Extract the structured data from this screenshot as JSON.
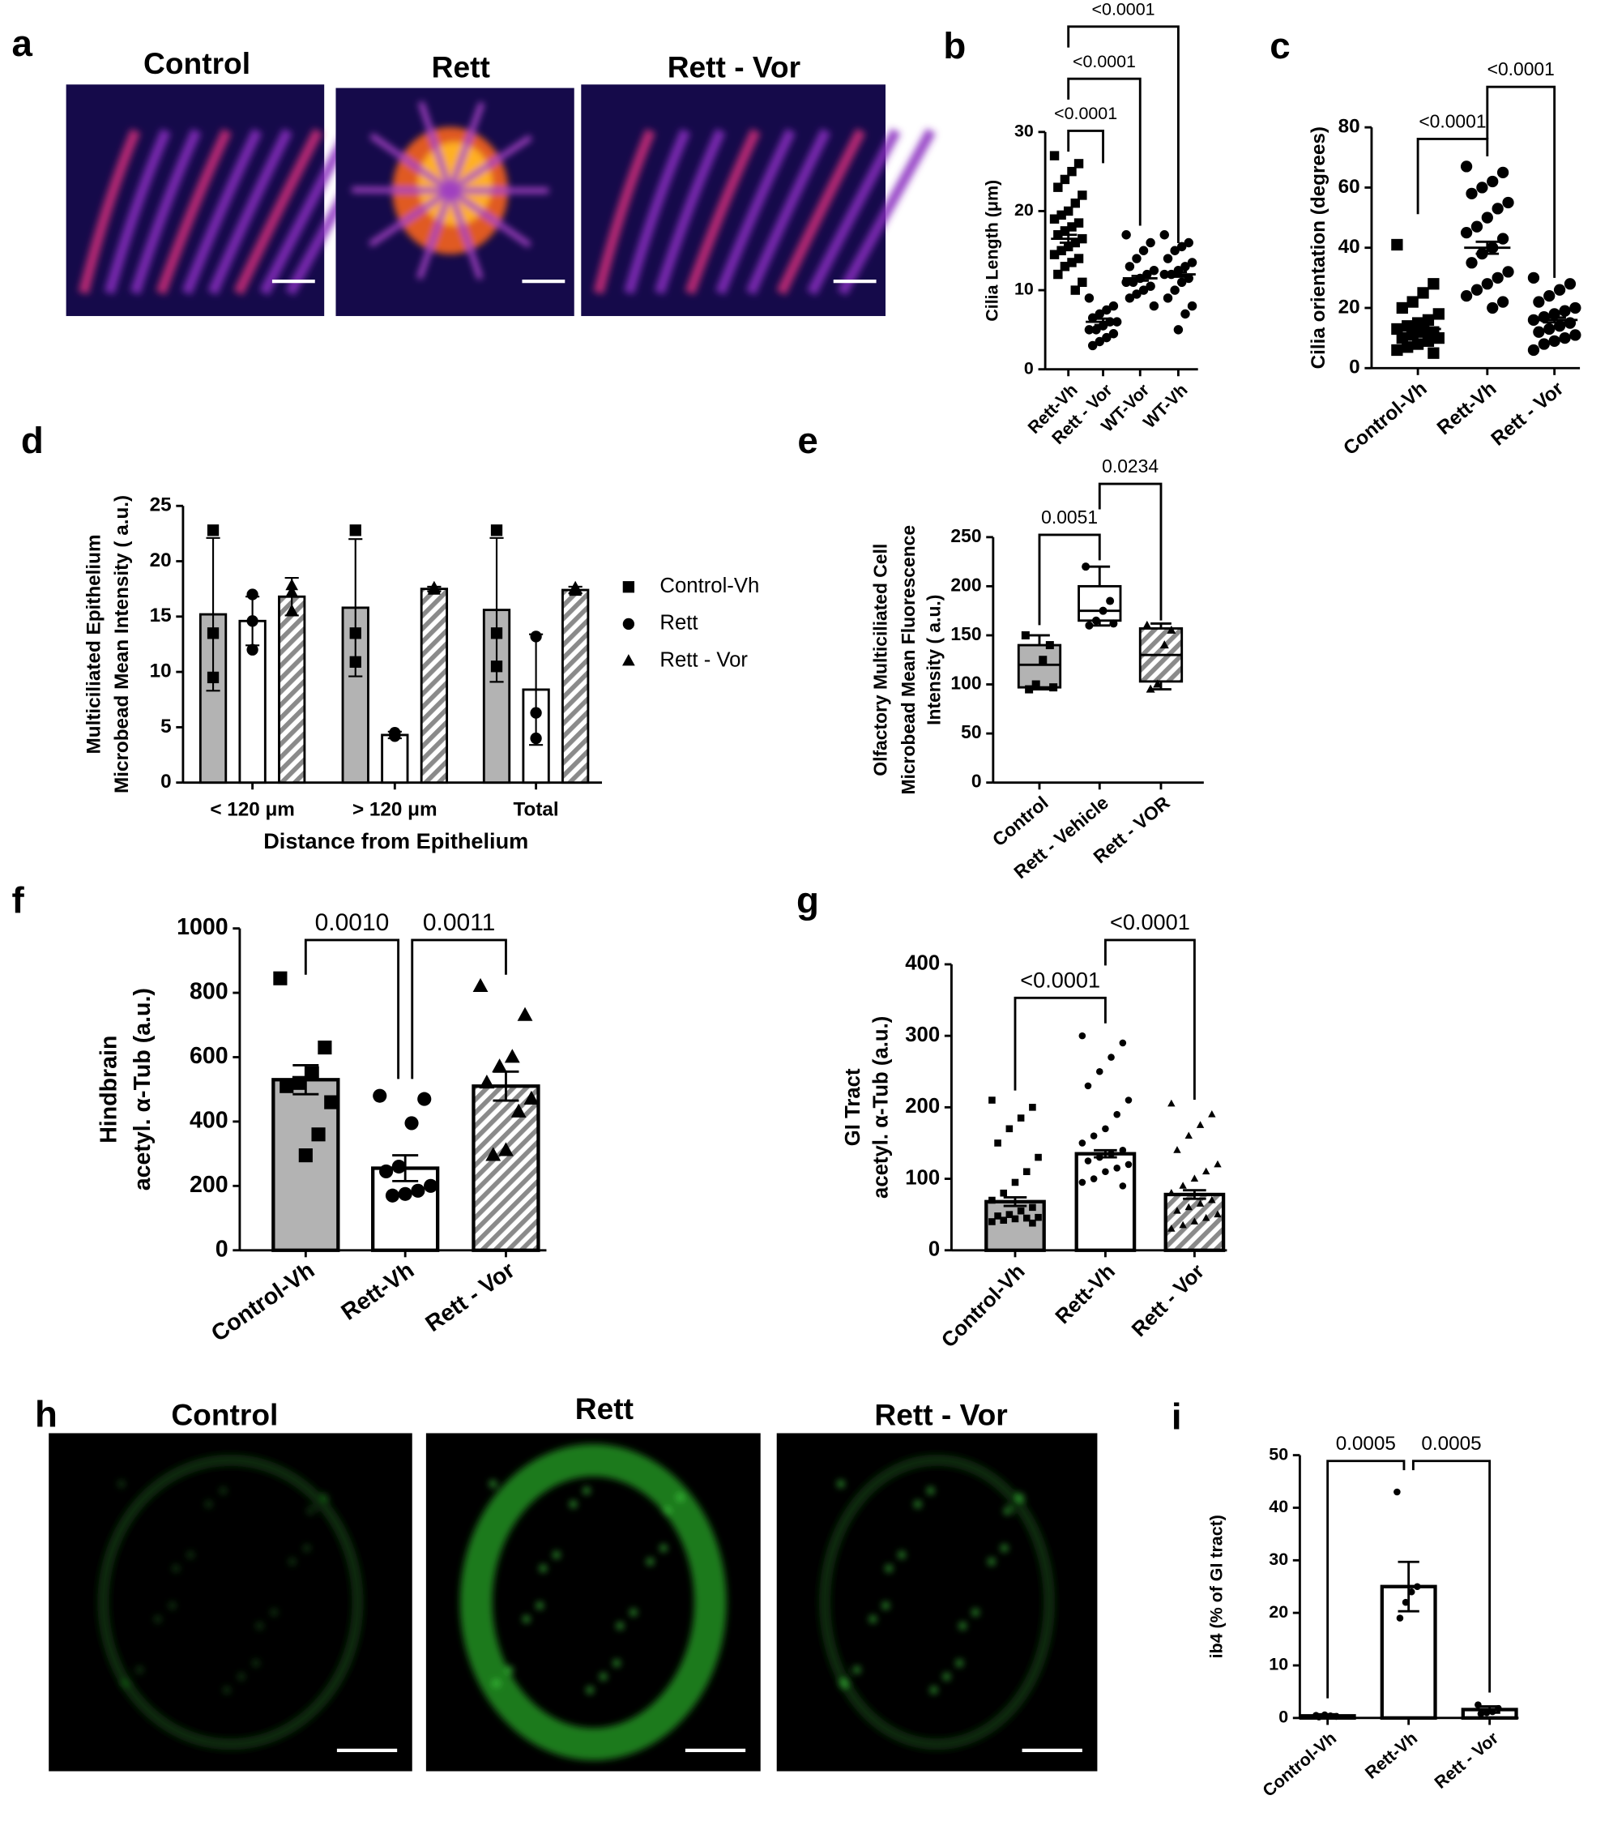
{
  "image_panels": [
    {
      "panel": "a",
      "titles": [
        "Control",
        "Rett",
        "Rett - Vor"
      ]
    },
    {
      "panel": "h",
      "titles": [
        "Control",
        "Rett",
        "Rett - Vor"
      ]
    }
  ],
  "chart_data": [
    {
      "type": "dot",
      "panel": "b",
      "categories": [
        "Rett-Vh",
        "Rett - Vor",
        "WT-Vor",
        "WT-Vh"
      ],
      "ylabel": [
        "Cilia Length  (μm)"
      ],
      "ylim": [
        0,
        30
      ],
      "yticks": [
        0,
        10,
        20,
        30
      ],
      "markers": [
        "square",
        "circle",
        "circle",
        "circle"
      ],
      "values": [
        16.5,
        6,
        11.5,
        12
      ],
      "errors": [
        0.5,
        0.4,
        0.3,
        0.3
      ],
      "points": [
        [
          27,
          26,
          25,
          24,
          23,
          22,
          21,
          20,
          19.5,
          19,
          18.5,
          18,
          17.5,
          17,
          16.5,
          16,
          15.5,
          15,
          14.5,
          14,
          13.5,
          13,
          12,
          11,
          10
        ],
        [
          9,
          8,
          7.5,
          7,
          6.5,
          6,
          6,
          5.5,
          5,
          5,
          4.5,
          4,
          3.5,
          3
        ],
        [
          17,
          16,
          15,
          14,
          13,
          12.5,
          12,
          11.5,
          11,
          11,
          10.5,
          10,
          9.5,
          9,
          8
        ],
        [
          17,
          16,
          15.5,
          15,
          14,
          13.5,
          13,
          12.5,
          12,
          12,
          11.5,
          11,
          10,
          9,
          8,
          7,
          5
        ]
      ],
      "comparisons": [
        {
          "groups": [
            0,
            1
          ],
          "label": "<0.0001"
        },
        {
          "groups": [
            0,
            2
          ],
          "label": "<0.0001"
        },
        {
          "groups": [
            0,
            3
          ],
          "label": "<0.0001"
        }
      ]
    },
    {
      "type": "dot",
      "panel": "c",
      "categories": [
        "Control-Vh",
        "Rett-Vh",
        "Rett - Vor"
      ],
      "ylabel": [
        "Cilia orientation (degrees)"
      ],
      "ylim": [
        0,
        80
      ],
      "yticks": [
        0,
        20,
        40,
        60,
        80
      ],
      "markers": [
        "square",
        "circle",
        "circle"
      ],
      "values": [
        13,
        40,
        16
      ],
      "errors": [
        1,
        2,
        0.8
      ],
      "points": [
        [
          41,
          28,
          25,
          22,
          20,
          18,
          16,
          15,
          14,
          13,
          12,
          12,
          11,
          10,
          10,
          9,
          8,
          7,
          6,
          5
        ],
        [
          67,
          65,
          62,
          60,
          58,
          55,
          53,
          50,
          47,
          45,
          43,
          40,
          38,
          35,
          32,
          30,
          28,
          26,
          24,
          22,
          20
        ],
        [
          30,
          28,
          26,
          24,
          22,
          20,
          19,
          18,
          17,
          16,
          15,
          14,
          13,
          12,
          11,
          10,
          9,
          8,
          6
        ]
      ],
      "comparisons": [
        {
          "groups": [
            0,
            1
          ],
          "label": "<0.0001"
        },
        {
          "groups": [
            1,
            2
          ],
          "label": "<0.0001"
        }
      ]
    },
    {
      "type": "grouped",
      "panel": "d",
      "categories": [
        "< 120 μm",
        "> 120 μm",
        "Total"
      ],
      "ylabel": [
        "Multiciliated Epithelium",
        "Microbead Mean Intensity ( a.u.)"
      ],
      "xlabel": "Distance from Epithelium",
      "ylim": [
        0,
        25
      ],
      "yticks": [
        0,
        5,
        10,
        15,
        20,
        25
      ],
      "series": [
        {
          "name": "Control-Vh",
          "marker": "square",
          "fill": "gray",
          "values": [
            15.2,
            15.8,
            15.6
          ],
          "errors": [
            6.9,
            6.2,
            6.5
          ],
          "points": [
            [
              22.8,
              13.5,
              9.5
            ],
            [
              22.8,
              13.5,
              10.9
            ],
            [
              22.8,
              13.5,
              10.5
            ]
          ]
        },
        {
          "name": "Rett",
          "marker": "circle",
          "fill": "white",
          "values": [
            14.6,
            4.3,
            8.4
          ],
          "errors": [
            2.2,
            0.3,
            5
          ],
          "points": [
            [
              17,
              14.6,
              12
            ],
            [
              4.5,
              4.3,
              4.2
            ],
            [
              13.2,
              6.3,
              4
            ]
          ]
        },
        {
          "name": "Rett - Vor",
          "marker": "triangle",
          "fill": "hatch",
          "values": [
            16.8,
            17.5,
            17.4
          ],
          "errors": [
            1.7,
            0.2,
            0.3
          ],
          "points": [
            [
              17.8,
              17.2,
              15.5
            ],
            [
              17.6,
              17.5,
              17.4
            ],
            [
              17.6,
              17.3,
              17.4
            ]
          ]
        }
      ]
    },
    {
      "type": "box",
      "panel": "e",
      "categories": [
        "Control",
        "Rett - Vehicle",
        "Rett - VOR"
      ],
      "ylabel": [
        "Olfactory Multiciliated  Cell",
        "Microbead Mean Fluorescence",
        "Intensity ( a.u.)"
      ],
      "ylim": [
        0,
        250
      ],
      "yticks": [
        0,
        50,
        100,
        150,
        200,
        250
      ],
      "markers": [
        "square",
        "circle",
        "triangle"
      ],
      "fills": [
        "gray",
        "white",
        "hatch"
      ],
      "boxes": [
        {
          "min": 95,
          "q1": 97,
          "median": 120,
          "q3": 140,
          "max": 150
        },
        {
          "min": 160,
          "q1": 165,
          "median": 175,
          "q3": 200,
          "max": 220
        },
        {
          "min": 95,
          "q1": 103,
          "median": 130,
          "q3": 157,
          "max": 162
        }
      ],
      "points": [
        [
          150,
          140,
          125,
          100,
          95,
          97
        ],
        [
          220,
          185,
          175,
          165,
          160,
          162
        ],
        [
          160,
          155,
          140,
          100,
          95
        ]
      ],
      "comparisons": [
        {
          "groups": [
            0,
            1
          ],
          "label": "0.0051"
        },
        {
          "groups": [
            1,
            2
          ],
          "label": "0.0234"
        }
      ]
    },
    {
      "type": "bar",
      "panel": "f",
      "categories": [
        "Control-Vh",
        "Rett-Vh",
        "Rett - Vor"
      ],
      "ylabel": [
        "Hindbrain",
        "acetyl. α-Tub  (a.u.)"
      ],
      "ylim": [
        0,
        1000
      ],
      "yticks": [
        0,
        200,
        400,
        600,
        800,
        1000
      ],
      "markers": [
        "square",
        "circle",
        "triangle"
      ],
      "fills": [
        "gray",
        "white",
        "hatch"
      ],
      "values": [
        530,
        255,
        510
      ],
      "errors": [
        45,
        40,
        45
      ],
      "points": [
        [
          845,
          630,
          550,
          520,
          510,
          460,
          360,
          295
        ],
        [
          480,
          470,
          395,
          260,
          245,
          200,
          185,
          175,
          170
        ],
        [
          820,
          730,
          600,
          570,
          520,
          470,
          430,
          310,
          295
        ]
      ],
      "comparisons": [
        {
          "groups": [
            0,
            1
          ],
          "label": "0.0010"
        },
        {
          "groups": [
            1,
            2
          ],
          "label": "0.0011"
        }
      ]
    },
    {
      "type": "bar",
      "panel": "g",
      "categories": [
        "Control-Vh",
        "Rett-Vh",
        "Rett - Vor"
      ],
      "ylabel": [
        "GI Tract",
        "acetyl. α-Tub  (a.u.)"
      ],
      "ylim": [
        0,
        400
      ],
      "yticks": [
        0,
        100,
        200,
        300,
        400
      ],
      "markers": [
        "square",
        "circle",
        "triangle"
      ],
      "fills": [
        "gray",
        "white",
        "hatch"
      ],
      "values": [
        68,
        135,
        78
      ],
      "errors": [
        6,
        5,
        6
      ],
      "points": [
        [
          210,
          200,
          185,
          170,
          150,
          130,
          110,
          95,
          80,
          70,
          60,
          55,
          50,
          48,
          46,
          45,
          44,
          42,
          40,
          38
        ],
        [
          300,
          290,
          270,
          250,
          230,
          210,
          190,
          170,
          160,
          150,
          140,
          135,
          130,
          125,
          120,
          115,
          110,
          100,
          95,
          90
        ],
        [
          205,
          190,
          175,
          160,
          140,
          120,
          110,
          100,
          90,
          80,
          70,
          65,
          60,
          55,
          50,
          45,
          40,
          35,
          30
        ]
      ],
      "comparisons": [
        {
          "groups": [
            0,
            1
          ],
          "label": "<0.0001"
        },
        {
          "groups": [
            1,
            2
          ],
          "label": "<0.0001"
        }
      ]
    },
    {
      "type": "bar",
      "panel": "i",
      "categories": [
        "Control-Vh",
        "Rett-Vh",
        "Rett - Vor"
      ],
      "ylabel": [
        "ib4  (% of GI tract)"
      ],
      "ylim": [
        0,
        50
      ],
      "yticks": [
        0,
        10,
        20,
        30,
        40,
        50
      ],
      "markers": [
        "circle",
        "circle",
        "circle"
      ],
      "fills": [
        "white",
        "white",
        "white"
      ],
      "values": [
        0.4,
        25,
        1.6
      ],
      "errors": [
        0.3,
        4.7,
        0.6
      ],
      "points": [
        [
          0.5,
          0.3,
          0.4,
          0.6,
          0.2
        ],
        [
          43,
          25,
          24,
          22,
          19
        ],
        [
          2.5,
          1.8,
          1.2,
          1,
          0.8
        ]
      ],
      "comparisons": [
        {
          "groups": [
            0,
            1
          ],
          "label": "0.0005"
        },
        {
          "groups": [
            1,
            2
          ],
          "label": "0.0005"
        }
      ]
    }
  ]
}
